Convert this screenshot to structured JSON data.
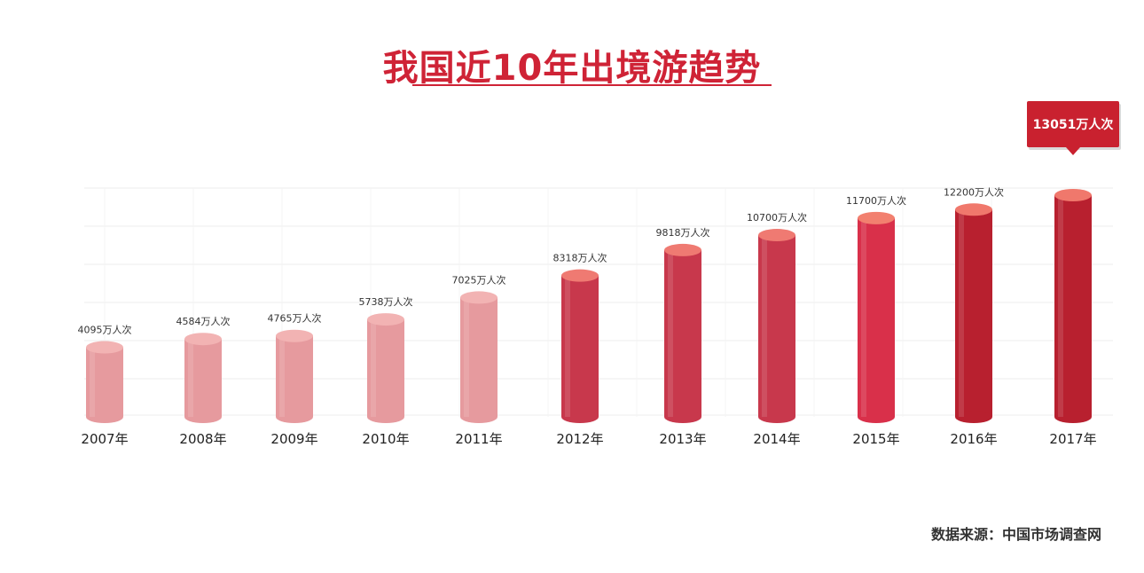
{
  "chart_data": {
    "type": "bar",
    "title": "我国近10年出境游趋势",
    "categories": [
      "2007年",
      "2008年",
      "2009年",
      "2010年",
      "2011年",
      "2012年",
      "2013年",
      "2014年",
      "2015年",
      "2016年",
      "2017年"
    ],
    "values": [
      4095,
      4584,
      4765,
      5738,
      7025,
      8318,
      9818,
      10700,
      11700,
      12200,
      13051
    ],
    "value_labels": [
      "4095万人次",
      "4584万人次",
      "4765万人次",
      "5738万人次",
      "7025万人次",
      "8318万人次",
      "9818万人次",
      "10700万人次",
      "11700万人次",
      "12200万人次",
      "13051万人次"
    ],
    "highlight_label": "13051万人次",
    "source_note": "数据来源：中国市场调查网",
    "grid": true,
    "colors": {
      "title": "#cf2336",
      "bars": [
        "#e69a9e",
        "#e69a9e",
        "#e69a9e",
        "#e69a9e",
        "#e69a9e",
        "#c8384c",
        "#c8384c",
        "#c8384c",
        "#d9304a",
        "#b8202f",
        "#b8202f"
      ],
      "bar_tops": [
        "#f2b3b3",
        "#f2b3b3",
        "#f2b3b3",
        "#f2b3b3",
        "#f2b3b3",
        "#ef7a72",
        "#ef7a72",
        "#ef7a72",
        "#f2806f",
        "#f0786c",
        "#f0786c"
      ],
      "callout": "#c9212f"
    }
  }
}
